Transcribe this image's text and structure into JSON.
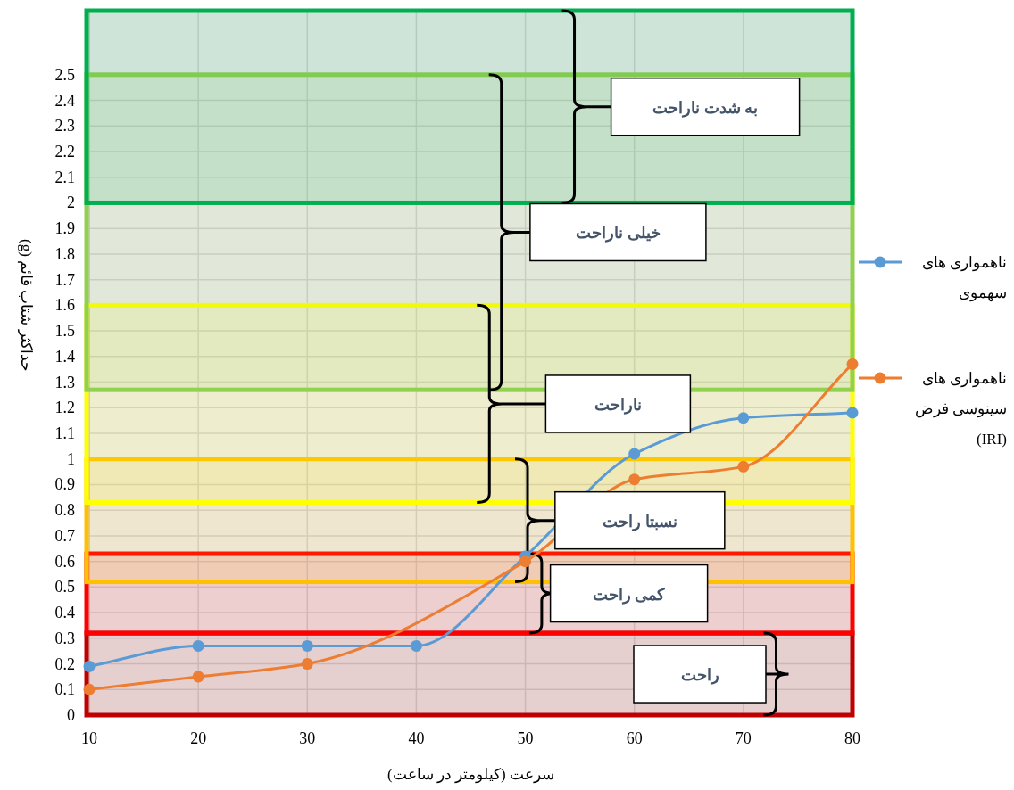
{
  "chart_data": {
    "type": "line",
    "xlabel": "سرعت (کیلومتر در ساعت)",
    "ylabel": "حداکثر شتاب قائم (g)",
    "xlim": [
      10,
      80
    ],
    "xticks": [
      10,
      20,
      30,
      40,
      50,
      60,
      70,
      80
    ],
    "ylim": [
      0,
      2.75
    ],
    "yticks": [
      0,
      0.1,
      0.2,
      0.3,
      0.4,
      0.5,
      0.6,
      0.7,
      0.8,
      0.9,
      1,
      1.1,
      1.2,
      1.3,
      1.4,
      1.5,
      1.6,
      1.7,
      1.8,
      1.9,
      2,
      2.1,
      2.2,
      2.3,
      2.4,
      2.5
    ],
    "grid": true,
    "legend": "right",
    "marker": "circle",
    "line_style": "solid",
    "series": [
      {
        "name": "ناهمواری های سهموی",
        "color": "#5b9bd5",
        "x": [
          10,
          20,
          30,
          40,
          50,
          60,
          70,
          80
        ],
        "values": [
          0.19,
          0.27,
          0.27,
          0.27,
          0.62,
          1.02,
          1.16,
          1.18
        ]
      },
      {
        "name": "ناهمواری های سینوسی فرض (IRI)",
        "color": "#ed7d31",
        "x": [
          10,
          20,
          30,
          50,
          60,
          70,
          80
        ],
        "values": [
          0.1,
          0.15,
          0.2,
          0.6,
          0.92,
          0.97,
          1.37
        ]
      }
    ],
    "bands": [
      {
        "axis": "y",
        "from": 0,
        "to": 0.32,
        "label": "راحت",
        "color": "#c00000"
      },
      {
        "axis": "y",
        "from": 0.32,
        "to": 0.63,
        "label": "کمی راحت",
        "color": "#ff0000"
      },
      {
        "axis": "y",
        "from": 0.52,
        "to": 1.0,
        "label": "نسبتا راحت",
        "color": "#ffc000"
      },
      {
        "axis": "y",
        "from": 0.83,
        "to": 1.6,
        "label": "ناراحت",
        "color": "#ffff00"
      },
      {
        "axis": "y",
        "from": 1.27,
        "to": 2.5,
        "label": "خیلی ناراحت",
        "color": "#92d050"
      },
      {
        "axis": "y",
        "from": 2.0,
        "to": 2.75,
        "label": "به شدت ناراحت",
        "color": "#00b050"
      }
    ]
  }
}
